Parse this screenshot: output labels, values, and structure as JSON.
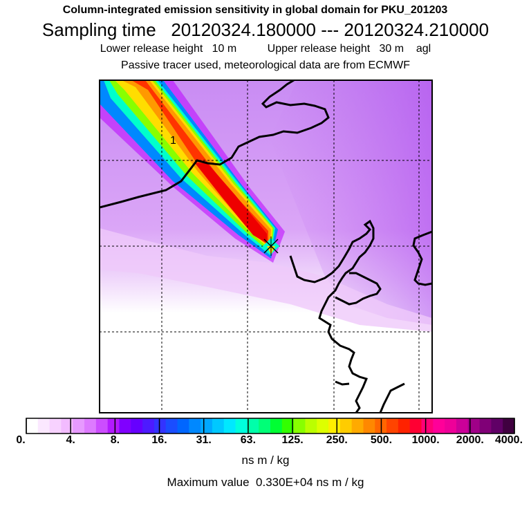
{
  "header": {
    "title": "Column-integrated emission sensitivity in global domain for PKU_201203",
    "sampling": "Sampling time   20120324.180000 --- 20120324.210000",
    "release": "Lower release height   10 m          Upper release height   30 m    agl",
    "note": "Passive tracer used, meteorological data are from ECMWF"
  },
  "map": {
    "plume_label": "1",
    "release_marker": "release-site-marker",
    "frame_color": "#000000",
    "gridline_style": "dashed",
    "background_color": "#d98ef2",
    "plume_colors": [
      "#ff3300",
      "#ff8800",
      "#ffdd00",
      "#aaff00",
      "#00ffbb",
      "#00ddff",
      "#0088ff",
      "#7733ff",
      "#bb00ff"
    ]
  },
  "colorbar": {
    "colors": [
      "#ffffff",
      "#fbe8ff",
      "#f7d2ff",
      "#f2bbff",
      "#e79aff",
      "#dd7aff",
      "#cc4dff",
      "#b31aff",
      "#8000ff",
      "#6600ff",
      "#4d1aff",
      "#3333ff",
      "#1a4dff",
      "#0066ff",
      "#0088ff",
      "#00a8ff",
      "#00c8ff",
      "#00e8ff",
      "#00ffdd",
      "#00ffaa",
      "#00ff77",
      "#00ff33",
      "#33ff00",
      "#88ff00",
      "#bbff00",
      "#ddff00",
      "#ffee00",
      "#ffcc00",
      "#ffaa00",
      "#ff8800",
      "#ff6600",
      "#ff4400",
      "#ff2200",
      "#ff0033",
      "#ff0077",
      "#ff0099",
      "#ee0099",
      "#cc0099",
      "#a00088",
      "#800077",
      "#600066",
      "#400040"
    ],
    "tick_labels": [
      "0.",
      "4.",
      "8.",
      "16.",
      "31.",
      "63.",
      "125.",
      "250.",
      "500.",
      "1000.",
      "2000.",
      "4000."
    ],
    "units": "ns m / kg",
    "max_value": "Maximum value  0.330E+04 ns m / kg"
  }
}
